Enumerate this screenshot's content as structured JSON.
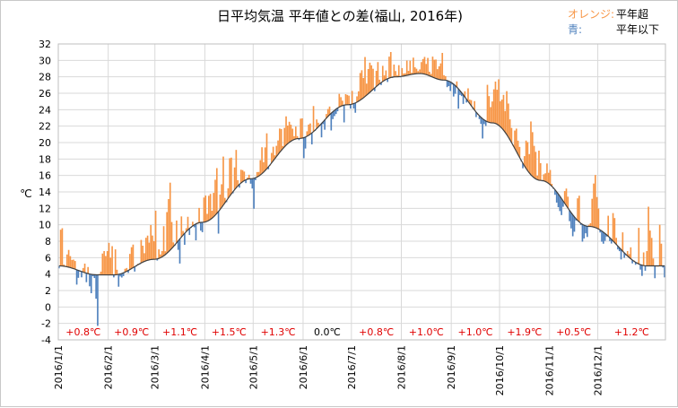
{
  "chart_data": {
    "type": "bar",
    "title": "日平均気温 平年値との差(福山, 2016年)",
    "ylabel": "℃",
    "ylim": [
      -4,
      32
    ],
    "ytick_step": 2,
    "grid": true,
    "legend": {
      "placement": "top-right",
      "above_label": "オレンジ:",
      "above_text": "平年超",
      "below_label": "青:",
      "below_text": "平年以下"
    },
    "colors": {
      "above": "#f79646",
      "below": "#4f81bd",
      "normal_line": "#404040",
      "grid": "#d9d9d9",
      "text_positive": "#e00000",
      "text_zero": "#000000"
    },
    "x_tick_labels": [
      "2016/1/1",
      "2016/2/1",
      "2016/3/1",
      "2016/4/1",
      "2016/5/1",
      "2016/6/1",
      "2016/7/1",
      "2016/8/1",
      "2016/9/1",
      "2016/10/1",
      "2016/11/1",
      "2016/12/1"
    ],
    "month_start_day": [
      1,
      32,
      61,
      92,
      122,
      153,
      183,
      214,
      245,
      275,
      306,
      336
    ],
    "monthly_anomaly_labels": [
      "+0.8℃",
      "+0.9℃",
      "+1.1℃",
      "+1.5℃",
      "+1.3℃",
      "0.0℃",
      "+0.8℃",
      "+1.0℃",
      "+1.0℃",
      "+1.9℃",
      "+0.5℃",
      "+1.2℃"
    ],
    "monthly_anomaly_values": [
      0.8,
      0.9,
      1.1,
      1.5,
      1.3,
      0.0,
      0.8,
      1.0,
      1.0,
      1.9,
      0.5,
      1.2
    ],
    "normal_nodes": {
      "day": [
        1,
        25,
        35,
        60,
        90,
        120,
        150,
        180,
        210,
        225,
        240,
        270,
        300,
        330,
        366
      ],
      "temp": [
        5.0,
        3.9,
        3.9,
        5.8,
        10.3,
        15.6,
        20.5,
        24.6,
        28.0,
        28.4,
        27.6,
        22.4,
        15.4,
        9.8,
        5.0
      ]
    },
    "daily_anomaly": [
      -0.3,
      4.4,
      4.6,
      0.2,
      0.1,
      1.5,
      2.1,
      1.4,
      1.0,
      1.1,
      1.0,
      -1.8,
      -0.9,
      -0.1,
      -0.7,
      0.5,
      1.1,
      -1.1,
      0.8,
      -1.5,
      -2.3,
      -0.2,
      -0.4,
      -2.9,
      -6.2,
      0.1,
      0.4,
      2.6,
      2.9,
      2.3,
      2.9,
      3.9,
      2.1,
      3.5,
      -0.3,
      3.1,
      0.6,
      -1.5,
      -0.3,
      -0.5,
      -0.4,
      0.4,
      0.4,
      -0.3,
      1.9,
      2.6,
      2.8,
      -0.6,
      -0.1,
      0.1,
      -0.1,
      2.8,
      2.0,
      1.0,
      2.8,
      3.0,
      2.1,
      4.2,
      2.9,
      2.2,
      5.9,
      -0.2,
      1.1,
      0.4,
      0.7,
      3.6,
      0.4,
      5.0,
      6.4,
      8.2,
      3.2,
      0.5,
      -0.1,
      2.7,
      -1.1,
      -3.0,
      2.5,
      0.5,
      -1.4,
      0.4,
      1.6,
      -0.8,
      -0.1,
      0.5,
      -0.3,
      -2.0,
      0.1,
      1.8,
      -1.0,
      -1.2,
      3.0,
      3.2,
      0.9,
      3.0,
      3.1,
      0.9,
      2.9,
      4.3,
      5.5,
      -2.7,
      1.8,
      2.8,
      5.9,
      0.6,
      -0.2,
      1.2,
      4.6,
      4.4,
      -0.2,
      2.7,
      4.6,
      0.7,
      -0.4,
      1.6,
      1.4,
      1.1,
      -0.4,
      0.2,
      0.5,
      -0.6,
      -1.2,
      -3.7,
      -0.3,
      0.6,
      0.5,
      1.8,
      3.2,
      1.2,
      2.8,
      4.3,
      -0.3,
      0.0,
      1.2,
      1.7,
      0.4,
      1.3,
      1.7,
      2.9,
      2.6,
      0.3,
      2.3,
      3.5,
      2.2,
      2.5,
      2.0,
      1.4,
      0.4,
      1.5,
      0.3,
      -0.2,
      2.4,
      2.4,
      -2.5,
      -1.4,
      0.6,
      1.3,
      1.3,
      -1.4,
      3.1,
      -0.1,
      1.1,
      0.5,
      0.0,
      -1.7,
      -0.3,
      -1.2,
      0.5,
      0.9,
      1.0,
      -2.1,
      -0.9,
      -0.7,
      -0.6,
      -0.4,
      1.6,
      1.1,
      0.6,
      -2.1,
      1.3,
      1.2,
      1.1,
      -0.5,
      1.6,
      -0.6,
      -1.2,
      0.7,
      1.2,
      3.3,
      3.5,
      2.4,
      4.8,
      1.4,
      3.0,
      3.6,
      3.1,
      2.5,
      -0.4,
      1.9,
      2.8,
      0.5,
      -0.3,
      1.9,
      0.6,
      1.1,
      -0.4,
      2.6,
      3.1,
      -0.1,
      1.5,
      0.7,
      0.2,
      1.4,
      -0.1,
      1.0,
      0.3,
      0.3,
      1.8,
      0.5,
      1.7,
      0.2,
      2.0,
      0.8,
      0.6,
      0.3,
      0.5,
      1.4,
      1.8,
      2.1,
      1.3,
      2.1,
      0.5,
      0.3,
      2.5,
      2.2,
      2.3,
      1.2,
      1.6,
      2.0,
      3.3,
      0.6,
      0.5,
      -0.8,
      -0.6,
      -1.1,
      -0.2,
      -1.5,
      -1.0,
      0.7,
      -2.4,
      -0.5,
      -0.4,
      -1.1,
      0.7,
      -0.4,
      1.6,
      0.5,
      0.7,
      -0.1,
      1.1,
      -0.6,
      0.0,
      -0.4,
      -0.8,
      -2.4,
      -0.5,
      -0.6,
      4.5,
      3.2,
      1.9,
      2.6,
      4.1,
      5.1,
      4.2,
      5.6,
      3.1,
      3.5,
      4.3,
      2.6,
      5.3,
      4.1,
      2.5,
      1.8,
      0.1,
      2.2,
      2.8,
      1.7,
      1.3,
      -0.1,
      -0.6,
      1.2,
      3.4,
      3.5,
      2.3,
      6.5,
      5.4,
      3.9,
      3.3,
      0.5,
      3.6,
      2.1,
      -0.1,
      0.8,
      1.0,
      2.3,
      1.3,
      1.8,
      0.3,
      -0.1,
      -0.6,
      -1.3,
      -1.6,
      -1.8,
      -2.0,
      -0.7,
      1.5,
      2.1,
      1.4,
      -1.3,
      -1.9,
      -2.6,
      -1.8,
      -0.2,
      2.7,
      3.2,
      -0.2,
      -2.1,
      -1.6,
      -0.9,
      -1.3,
      0.2,
      0.4,
      3.4,
      5.3,
      6.4,
      3.8,
      2.5,
      -0.3,
      -1.3,
      -1.4,
      -0.9,
      -0.2,
      2.5,
      -0.4,
      -0.5,
      3.4,
      3.0,
      0.8,
      -0.4,
      -0.4,
      -1.2,
      2.3,
      -0.6,
      -0.1,
      0.6,
      0.4,
      1.4,
      -0.4,
      0.1,
      -0.3,
      0.1,
      4.4,
      -0.6,
      -1.3,
      1.6,
      -0.6,
      1.8,
      7.2,
      4.3,
      3.4,
      0.9,
      -1.5,
      0.0,
      0.0,
      5.0,
      2.7,
      -0.2,
      -1.4
    ]
  }
}
